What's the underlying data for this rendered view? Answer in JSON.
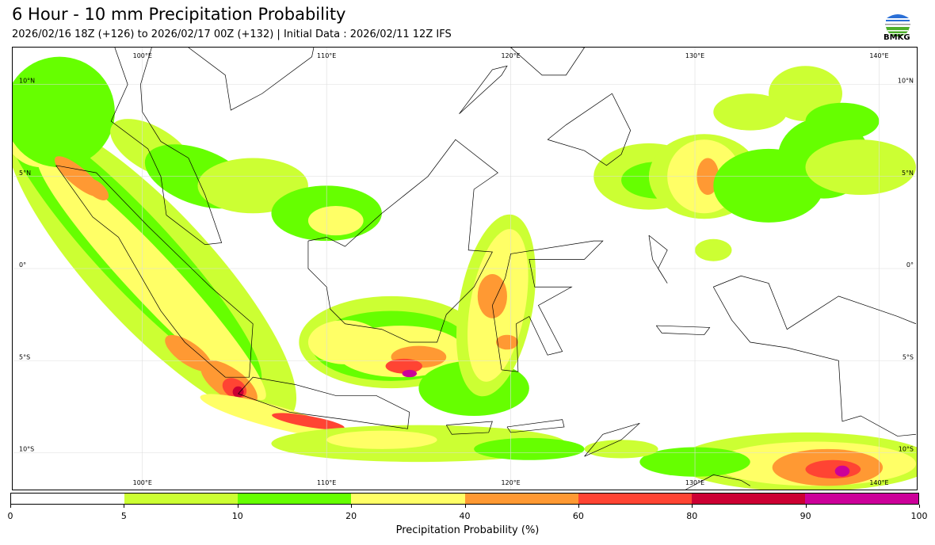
{
  "header": {
    "title": "6 Hour - 10 mm Precipitation Probability",
    "subtitle": "2026/02/16 18Z (+126) to 2026/02/17 00Z (+132) | Initial Data : 2026/02/11 12Z IFS",
    "logo_text": "BMKG"
  },
  "map": {
    "lon_labels": [
      "100°E",
      "110°E",
      "120°E",
      "130°E",
      "140°E"
    ],
    "lon_values": [
      100,
      110,
      120,
      130,
      140
    ],
    "lat_labels": [
      "10°N",
      "5°N",
      "0°",
      "5°S",
      "10°S"
    ],
    "lat_values": [
      10,
      5,
      0,
      -5,
      -10
    ],
    "extent": {
      "lon": [
        93,
        142
      ],
      "lat": [
        -12,
        12
      ]
    }
  },
  "colorbar": {
    "levels": [
      0,
      5,
      10,
      20,
      40,
      60,
      80,
      90,
      100
    ],
    "level_labels": [
      "0",
      "5",
      "10",
      "20",
      "40",
      "60",
      "80",
      "90",
      "100"
    ],
    "colors": [
      "#ffffff",
      "#ccff33",
      "#66ff00",
      "#ffff66",
      "#ff9933",
      "#ff4433",
      "#cc0033",
      "#cc0099"
    ],
    "label": "Precipitation Probability (%)"
  }
}
